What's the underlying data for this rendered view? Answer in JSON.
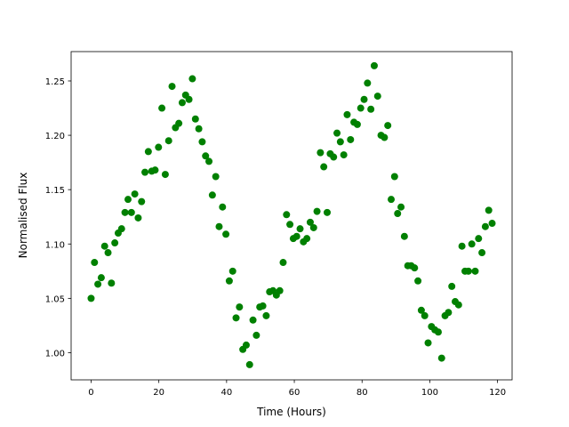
{
  "chart_data": {
    "type": "scatter",
    "x_label": "Time (Hours)",
    "y_label": "Normalised Flux",
    "color": "#008000",
    "xlim": [
      -5.9,
      124.3
    ],
    "ylim": [
      0.975,
      1.277
    ],
    "xticks": [
      0,
      20,
      40,
      60,
      80,
      100,
      120
    ],
    "yticks": [
      {
        "value": 1.0,
        "label": "1.00"
      },
      {
        "value": 1.05,
        "label": "1.05"
      },
      {
        "value": 1.1,
        "label": "1.10"
      },
      {
        "value": 1.15,
        "label": "1.15"
      },
      {
        "value": 1.2,
        "label": "1.20"
      },
      {
        "value": 1.25,
        "label": "1.25"
      }
    ],
    "x": [
      0,
      1.0,
      2.0,
      3.0,
      4.0,
      5.0,
      6.0,
      7.0,
      8.0,
      9.0,
      10.0,
      10.9,
      11.9,
      12.9,
      13.9,
      14.9,
      15.9,
      16.9,
      17.9,
      18.9,
      19.9,
      20.9,
      21.9,
      22.9,
      23.9,
      24.9,
      25.9,
      26.9,
      27.9,
      28.9,
      29.9,
      30.8,
      31.8,
      32.8,
      33.8,
      34.8,
      35.8,
      36.8,
      37.8,
      38.8,
      39.8,
      40.8,
      41.8,
      42.8,
      43.8,
      44.8,
      45.8,
      46.8,
      47.8,
      48.8,
      49.8,
      50.7,
      51.7,
      52.7,
      53.7,
      54.7,
      55.7,
      56.7,
      57.7,
      58.7,
      59.7,
      60.7,
      61.7,
      62.7,
      63.7,
      64.7,
      65.7,
      66.7,
      67.7,
      68.7,
      69.7,
      70.6,
      71.6,
      72.6,
      73.6,
      74.6,
      75.6,
      76.6,
      77.6,
      78.6,
      79.6,
      80.6,
      81.6,
      82.6,
      83.6,
      84.6,
      85.6,
      86.6,
      87.6,
      88.6,
      89.6,
      90.5,
      91.5,
      92.5,
      93.5,
      94.5,
      95.5,
      96.5,
      97.5,
      98.5,
      99.5,
      100.5,
      101.5,
      102.5,
      103.5,
      104.5,
      105.5,
      106.5,
      107.5,
      108.5,
      109.5,
      110.4,
      111.4,
      112.4,
      113.4,
      114.4,
      115.4,
      116.4,
      117.4,
      118.4
    ],
    "values": [
      1.05,
      1.083,
      1.063,
      1.069,
      1.098,
      1.092,
      1.064,
      1.101,
      1.11,
      1.114,
      1.129,
      1.141,
      1.129,
      1.146,
      1.124,
      1.139,
      1.166,
      1.185,
      1.167,
      1.168,
      1.189,
      1.225,
      1.164,
      1.195,
      1.245,
      1.207,
      1.211,
      1.23,
      1.237,
      1.233,
      1.252,
      1.215,
      1.206,
      1.194,
      1.181,
      1.176,
      1.145,
      1.162,
      1.116,
      1.134,
      1.109,
      1.066,
      1.075,
      1.032,
      1.042,
      1.003,
      1.007,
      0.989,
      1.03,
      1.016,
      1.042,
      1.043,
      1.034,
      1.056,
      1.057,
      1.053,
      1.057,
      1.083,
      1.127,
      1.118,
      1.105,
      1.107,
      1.114,
      1.102,
      1.105,
      1.12,
      1.115,
      1.13,
      1.184,
      1.171,
      1.129,
      1.183,
      1.18,
      1.202,
      1.194,
      1.182,
      1.219,
      1.196,
      1.212,
      1.21,
      1.225,
      1.233,
      1.248,
      1.224,
      1.264,
      1.236,
      1.2,
      1.198,
      1.209,
      1.141,
      1.162,
      1.128,
      1.134,
      1.107,
      1.08,
      1.08,
      1.078,
      1.066,
      1.039,
      1.034,
      1.009,
      1.024,
      1.021,
      1.019,
      0.995,
      1.034,
      1.037,
      1.061,
      1.047,
      1.044,
      1.098,
      1.075,
      1.075,
      1.1,
      1.075,
      1.105,
      1.092,
      1.116,
      1.131,
      1.119
    ]
  }
}
